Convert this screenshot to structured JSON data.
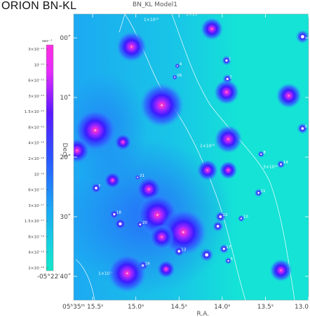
{
  "header": {
    "title_left": "ORION  BN-KL",
    "title_center": "BN_KL  Model1"
  },
  "colors": {
    "background_field": "#14e3d6",
    "peak": "#ff33cc",
    "mid": "#3a1cff",
    "contour": "#ffffff"
  },
  "chart_data": {
    "type": "heatmap",
    "title": "BN_KL  Model1",
    "xlabel": "R.A.",
    "ylabel": "Decl.",
    "x_ticks": [
      {
        "value": 15.5,
        "label": "05ʰ35ᵐ 15.5ˢ"
      },
      {
        "value": 15.0,
        "label": "15.0ˢ"
      },
      {
        "value": 14.5,
        "label": "14.5ˢ"
      },
      {
        "value": 14.0,
        "label": "14.0ˢ"
      },
      {
        "value": 13.5,
        "label": "13.5ˢ"
      },
      {
        "value": 13.0,
        "label": "13.0"
      }
    ],
    "y_ticks": [
      {
        "value": 0,
        "label": "00ʺ"
      },
      {
        "value": 10,
        "label": "10ʺ"
      },
      {
        "value": 20,
        "label": "20ʺ"
      },
      {
        "value": 30,
        "label": "30ʺ"
      },
      {
        "value": 40,
        "label": "-05°22′40ʺ"
      }
    ],
    "xlim": [
      15.72,
      13.0
    ],
    "ylim": [
      -4,
      44
    ],
    "colorbar": {
      "unit_label": "sec⁻¹",
      "labels": [
        "3×10⁻¹⁴",
        "10⁻¹⁴",
        "6×10⁻¹⁵",
        "3×10⁻¹⁵",
        "1.5×10⁻¹⁵",
        "8×10⁻¹⁶",
        "4×10⁻¹⁶",
        "2×10⁻¹⁶",
        "10⁻¹⁶",
        "6×10⁻¹⁷",
        "3×10⁻¹⁷",
        "1.5×10⁻¹⁷",
        "8×10⁻¹⁸",
        "4×10⁻¹⁸",
        "2×10⁻¹⁸"
      ]
    },
    "contour_labels": [
      "1×10¹⁰",
      "3×10¹⁰",
      "1×10¹⁰",
      "3×10¹⁰",
      "1×10¹⁰"
    ],
    "sources": [
      {
        "ra": 15.05,
        "dec": 1.5,
        "level": 0.95,
        "r": 22,
        "label": ""
      },
      {
        "ra": 14.12,
        "dec": -1.5,
        "level": 0.8,
        "r": 16,
        "label": ""
      },
      {
        "ra": 13.07,
        "dec": -0.2,
        "level": 0.3,
        "r": 10,
        "label": ""
      },
      {
        "ra": 13.95,
        "dec": 3.8,
        "level": 0.2,
        "r": 7,
        "label": "1"
      },
      {
        "ra": 14.52,
        "dec": 4.7,
        "level": 0.1,
        "r": 4,
        "label": "4"
      },
      {
        "ra": 14.55,
        "dec": 6.6,
        "level": 0.1,
        "r": 4,
        "label": "16"
      },
      {
        "ra": 13.94,
        "dec": 6.9,
        "level": 0.25,
        "r": 7,
        "label": "2"
      },
      {
        "ra": 13.95,
        "dec": 9.1,
        "level": 0.75,
        "r": 18,
        "label": ""
      },
      {
        "ra": 13.23,
        "dec": 9.7,
        "level": 0.8,
        "r": 18,
        "label": ""
      },
      {
        "ra": 14.7,
        "dec": 11.3,
        "level": 1.0,
        "r": 32,
        "label": ""
      },
      {
        "ra": 15.47,
        "dec": 15.5,
        "level": 1.0,
        "r": 30,
        "label": ""
      },
      {
        "ra": 15.15,
        "dec": 17.5,
        "level": 0.55,
        "r": 12,
        "label": ""
      },
      {
        "ra": 13.93,
        "dec": 17.0,
        "level": 0.8,
        "r": 20,
        "label": ""
      },
      {
        "ra": 13.07,
        "dec": 15.2,
        "level": 0.2,
        "r": 8,
        "label": "3"
      },
      {
        "ra": 13.55,
        "dec": 19.5,
        "level": 0.15,
        "r": 5,
        "label": "8"
      },
      {
        "ra": 15.68,
        "dec": 18.9,
        "level": 0.85,
        "r": 18,
        "label": ""
      },
      {
        "ra": 13.32,
        "dec": 21.2,
        "level": 0.15,
        "r": 6,
        "label": "14"
      },
      {
        "ra": 14.17,
        "dec": 22.2,
        "level": 0.7,
        "r": 15,
        "label": ""
      },
      {
        "ra": 13.93,
        "dec": 22.2,
        "level": 0.7,
        "r": 13,
        "label": ""
      },
      {
        "ra": 14.98,
        "dec": 23.4,
        "level": 0.1,
        "r": 4,
        "label": "21"
      },
      {
        "ra": 15.27,
        "dec": 23.9,
        "level": 0.55,
        "r": 12,
        "label": ""
      },
      {
        "ra": 15.46,
        "dec": 25.2,
        "level": 0.35,
        "r": 8,
        "label": "7"
      },
      {
        "ra": 14.85,
        "dec": 25.4,
        "level": 0.85,
        "r": 18,
        "label": ""
      },
      {
        "ra": 13.58,
        "dec": 26.0,
        "level": 0.15,
        "r": 6,
        "label": "11"
      },
      {
        "ra": 15.25,
        "dec": 29.6,
        "level": 0.35,
        "r": 7,
        "label": "18"
      },
      {
        "ra": 14.75,
        "dec": 29.7,
        "level": 1.0,
        "r": 30,
        "label": ""
      },
      {
        "ra": 14.02,
        "dec": 30.0,
        "level": 0.3,
        "r": 8,
        "label": "12"
      },
      {
        "ra": 13.78,
        "dec": 30.3,
        "level": 0.2,
        "r": 5,
        "label": "10"
      },
      {
        "ra": 15.18,
        "dec": 31.2,
        "level": 0.4,
        "r": 9,
        "label": ""
      },
      {
        "ra": 14.95,
        "dec": 31.3,
        "level": 0.2,
        "r": 6,
        "label": "20"
      },
      {
        "ra": 14.05,
        "dec": 31.6,
        "level": 0.3,
        "r": 8,
        "label": ""
      },
      {
        "ra": 14.45,
        "dec": 32.6,
        "level": 1.0,
        "r": 34,
        "label": ""
      },
      {
        "ra": 14.7,
        "dec": 33.4,
        "level": 0.85,
        "r": 18,
        "label": ""
      },
      {
        "ra": 14.5,
        "dec": 35.8,
        "level": 0.3,
        "r": 8,
        "label": "13"
      },
      {
        "ra": 13.98,
        "dec": 35.4,
        "level": 0.3,
        "r": 7,
        "label": "17"
      },
      {
        "ra": 14.18,
        "dec": 36.4,
        "level": 0.4,
        "r": 10,
        "label": ""
      },
      {
        "ra": 13.93,
        "dec": 37.4,
        "level": 0.15,
        "r": 5,
        "label": "5"
      },
      {
        "ra": 14.92,
        "dec": 38.2,
        "level": 0.3,
        "r": 8,
        "label": "19"
      },
      {
        "ra": 14.65,
        "dec": 38.8,
        "level": 0.6,
        "r": 13,
        "label": ""
      },
      {
        "ra": 15.1,
        "dec": 39.5,
        "level": 1.0,
        "r": 28,
        "label": ""
      },
      {
        "ra": 13.32,
        "dec": 39.0,
        "level": 0.75,
        "r": 16,
        "label": ""
      }
    ]
  }
}
